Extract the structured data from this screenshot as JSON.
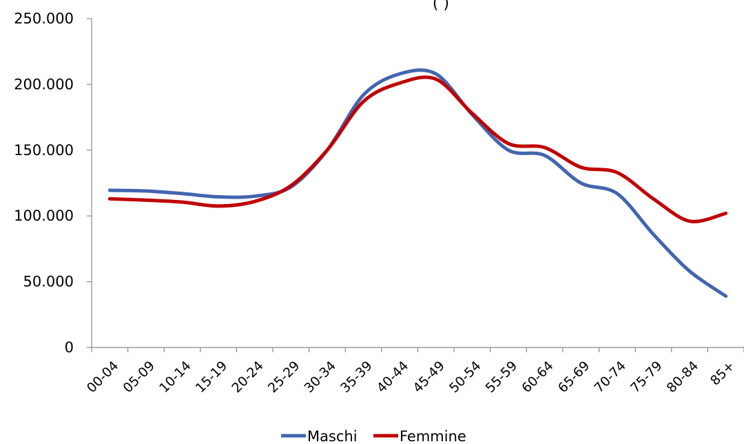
{
  "chart_data": {
    "type": "line",
    "title": "(                 )",
    "categories": [
      "00-04",
      "05-09",
      "10-14",
      "15-19",
      "20-24",
      "25-29",
      "30-34",
      "35-39",
      "40-44",
      "45-49",
      "50-54",
      "55-59",
      "60-64",
      "65-69",
      "70-74",
      "75-79",
      "80-84",
      "85+"
    ],
    "series": [
      {
        "name": "Maschi",
        "color": "#4365b0",
        "values": [
          119500,
          119000,
          117000,
          114500,
          115000,
          122000,
          150000,
          192000,
          208000,
          208000,
          177000,
          150000,
          146000,
          125000,
          117000,
          86000,
          58000,
          39000
        ]
      },
      {
        "name": "Femmine",
        "color": "#c00000",
        "values": [
          113000,
          112000,
          110500,
          107500,
          111000,
          123000,
          150000,
          187000,
          201000,
          204000,
          178000,
          155000,
          152000,
          137000,
          133000,
          113000,
          96000,
          102000
        ]
      }
    ],
    "y_ticks": [
      "0",
      "50.000",
      "100.000",
      "150.000",
      "200.000",
      "250.000"
    ],
    "ylim": [
      0,
      250000
    ],
    "grid": false,
    "legend_position": "bottom"
  }
}
